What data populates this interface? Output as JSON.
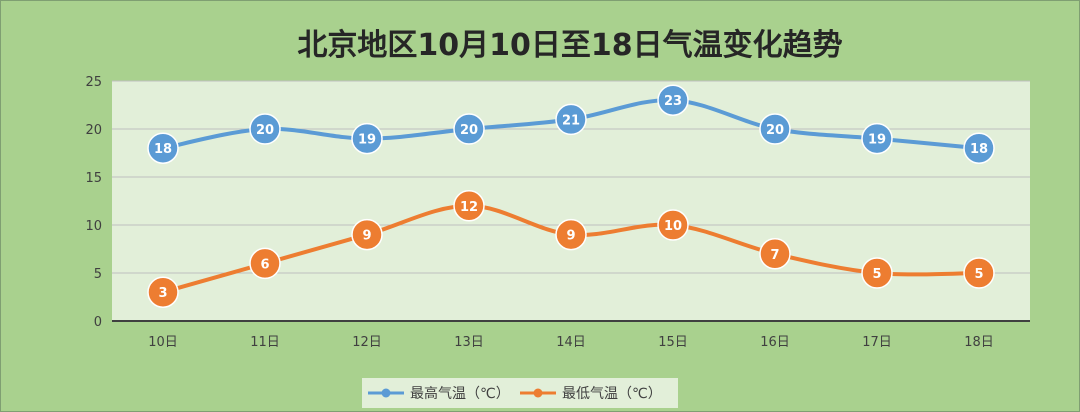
{
  "chart_data": {
    "type": "line",
    "title": "北京地区10月10日至18日气温变化趋势",
    "categories": [
      "10日",
      "11日",
      "12日",
      "13日",
      "14日",
      "15日",
      "16日",
      "17日",
      "18日"
    ],
    "ylim": [
      0,
      25
    ],
    "yticks": [
      0,
      5,
      10,
      15,
      20,
      25
    ],
    "grid": true,
    "legend_position": "bottom",
    "series": [
      {
        "name": "最高气温（℃）",
        "color": "#5b9bd5",
        "values": [
          18,
          20,
          19,
          20,
          21,
          23,
          20,
          19,
          18
        ]
      },
      {
        "name": "最低气温（℃）",
        "color": "#ed7d31",
        "values": [
          3,
          6,
          9,
          12,
          9,
          10,
          7,
          5,
          5
        ]
      }
    ]
  },
  "colors": {
    "page_background": "#a9d18e",
    "plot_background": "#e2efd9",
    "legend_background": "#e2efd9"
  }
}
